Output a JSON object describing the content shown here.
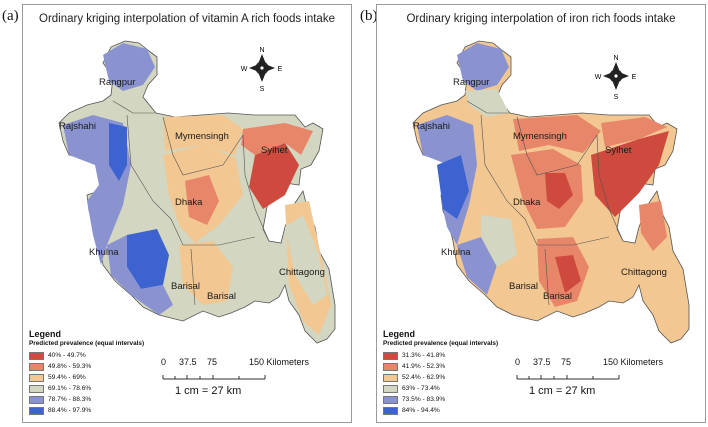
{
  "panels": [
    {
      "label": "(a)",
      "title": "Ordinary kriging interpolation of vitamin A rich foods intake",
      "regions": [
        "Rangpur",
        "Rajshahi",
        "Mymensingh",
        "Sylhet",
        "Dhaka",
        "Khulna",
        "Barisal",
        "Barisal",
        "Chittagong"
      ],
      "legend": {
        "title": "Legend",
        "subtitle": "Predicted prevalence (equal intervals)",
        "classes": [
          {
            "label": "40% - 49.7%",
            "color": "#cf4a3e"
          },
          {
            "label": "49.8% - 59.3%",
            "color": "#e8866a"
          },
          {
            "label": "59.4% - 69%",
            "color": "#f2c792"
          },
          {
            "label": "69.1% - 78.6%",
            "color": "#d3d6c0"
          },
          {
            "label": "78.7% - 88.3%",
            "color": "#8a93d0"
          },
          {
            "label": "88.4% - 97.9%",
            "color": "#3c63d0"
          }
        ]
      },
      "scale": {
        "ticks": [
          "0",
          "37.5",
          "75",
          "150 Kilometers"
        ],
        "note": "1 cm = 27 km"
      },
      "compass": {
        "n": "N",
        "s": "S",
        "e": "E",
        "w": "W"
      }
    },
    {
      "label": "(b)",
      "title": "Ordinary kriging interpolation of iron rich foods intake",
      "regions": [
        "Rangpur",
        "Rajshahi",
        "Mymensingh",
        "Sylhet",
        "Dhaka",
        "Khulna",
        "Barisal",
        "Barisal",
        "Chittagong"
      ],
      "legend": {
        "title": "Legend",
        "subtitle": "Predicted prevalence (equal intervals)",
        "classes": [
          {
            "label": "31.3% - 41.8%",
            "color": "#cf4a3e"
          },
          {
            "label": "41.9% - 52.3%",
            "color": "#e8866a"
          },
          {
            "label": "52.4% - 62.9%",
            "color": "#f2c792"
          },
          {
            "label": "63% - 73.4%",
            "color": "#d3d6c0"
          },
          {
            "label": "73.5% - 83.9%",
            "color": "#8a93d0"
          },
          {
            "label": "84% - 94.4%",
            "color": "#3c63d0"
          }
        ]
      },
      "scale": {
        "ticks": [
          "0",
          "37.5",
          "75",
          "150 Kilometers"
        ],
        "note": "1 cm = 27 km"
      },
      "compass": {
        "n": "N",
        "s": "S",
        "e": "E",
        "w": "W"
      }
    }
  ]
}
